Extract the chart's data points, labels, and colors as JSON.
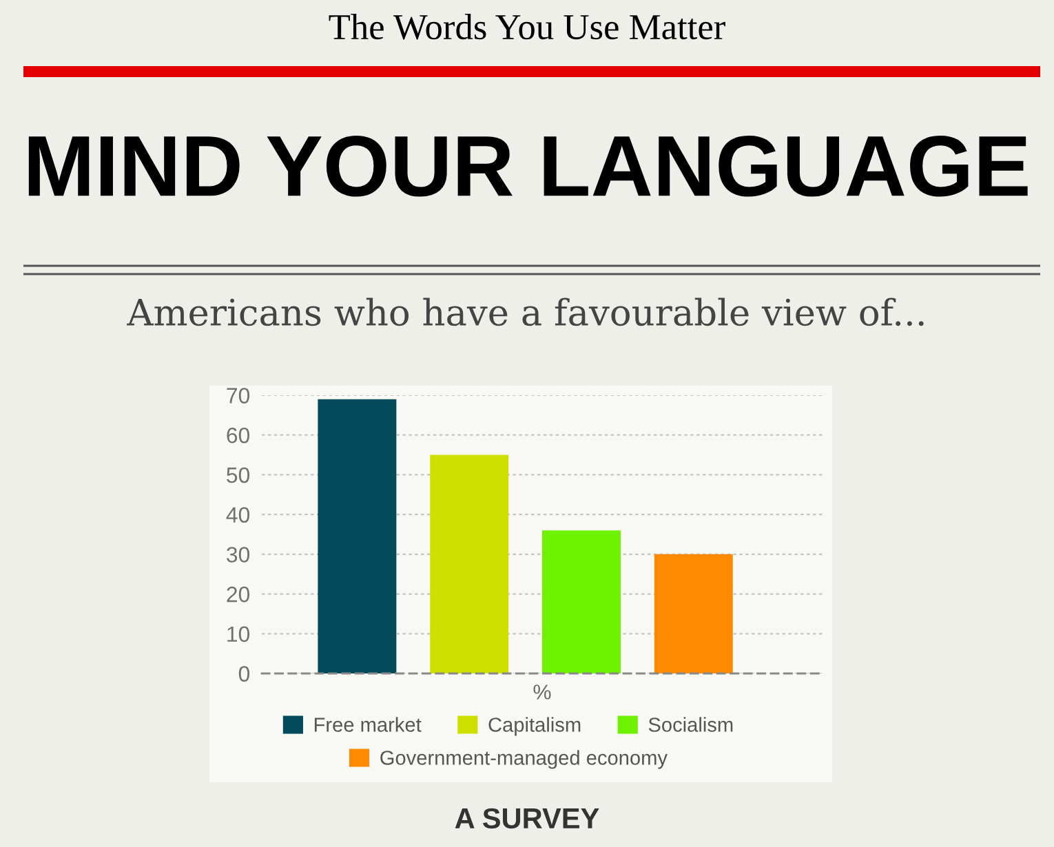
{
  "chart_data": {
    "type": "bar",
    "title": "MIND YOUR LANGUAGE",
    "subtitle": "Americans who have a favourable view of...",
    "xlabel": "%",
    "annotations": [
      "The Words You Use Matter",
      "A SURVEY"
    ],
    "categories": [
      null
    ],
    "series": [
      {
        "name": "Free market",
        "color": "#034a5a",
        "values": [
          69
        ]
      },
      {
        "name": "Capitalism",
        "color": "#cde000",
        "values": [
          55
        ]
      },
      {
        "name": "Socialism",
        "color": "#6ef200",
        "values": [
          36
        ]
      },
      {
        "name": "Government-managed economy",
        "color": "#ff8a00",
        "values": [
          30
        ]
      }
    ],
    "ylim": [
      0,
      70
    ],
    "yticks": [
      0,
      10,
      20,
      30,
      40,
      50,
      60,
      70
    ],
    "grid": "y",
    "legend": "bottom"
  }
}
